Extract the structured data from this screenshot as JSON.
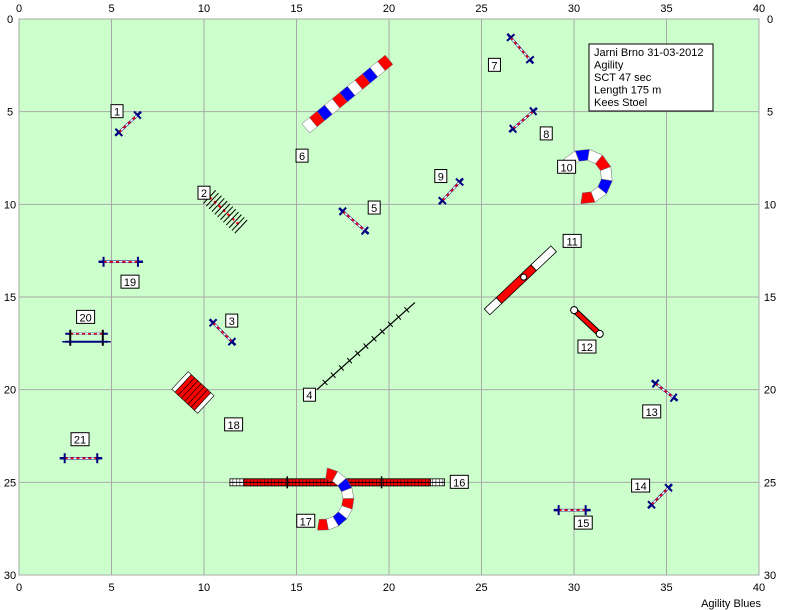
{
  "course": {
    "field_color": "#ccffcc",
    "grid_color": "#a9a9a9",
    "x_range": [
      0,
      40
    ],
    "y_range": [
      0,
      30
    ],
    "x_ticks": [
      "0",
      "5",
      "10",
      "15",
      "20",
      "25",
      "30",
      "35",
      "40"
    ],
    "y_ticks": [
      "0",
      "5",
      "10",
      "15",
      "20",
      "25",
      "30"
    ],
    "info_lines": [
      "Jarni Brno 31-03-2012",
      "Agility",
      "SCT 47 sec",
      "Length 175 m",
      "Kees Stoel"
    ],
    "brand": "Agility Blues",
    "colors": {
      "red": "#ff0000",
      "blue": "#0000ff",
      "dark_blue": "#000080",
      "white": "#ffffff"
    }
  },
  "obstacles": [
    {
      "num": "1",
      "type": "jump",
      "ax": 5.2,
      "ay": 6.3,
      "bx": 6.6,
      "by": 5.0,
      "lx": 5.3,
      "ly": 5.0
    },
    {
      "num": "2",
      "type": "weave",
      "ax": 10.3,
      "ay": 9.6,
      "bx": 12.0,
      "by": 11.2,
      "lx": 10.0,
      "ly": 9.4
    },
    {
      "num": "3",
      "type": "jump",
      "ax": 10.3,
      "ay": 16.2,
      "bx": 11.7,
      "by": 17.6,
      "lx": 11.5,
      "ly": 16.3
    },
    {
      "num": "4",
      "type": "dogwalk",
      "ax": 16.1,
      "ay": 20.0,
      "bx": 21.4,
      "by": 15.3,
      "lx": 15.7,
      "ly": 20.3
    },
    {
      "num": "5",
      "type": "jump",
      "ax": 17.3,
      "ay": 10.2,
      "bx": 18.9,
      "by": 11.6,
      "lx": 19.2,
      "ly": 10.2
    },
    {
      "num": "6",
      "type": "tunnel",
      "ax": 15.5,
      "ay": 5.9,
      "bx": 20.0,
      "by": 2.2,
      "lx": 15.3,
      "ly": 7.4
    },
    {
      "num": "7",
      "type": "jump",
      "ax": 26.4,
      "ay": 0.8,
      "bx": 27.8,
      "by": 2.4,
      "lx": 25.7,
      "ly": 2.5
    },
    {
      "num": "8",
      "type": "jump",
      "ax": 26.5,
      "ay": 6.1,
      "bx": 28.0,
      "by": 4.8,
      "lx": 28.5,
      "ly": 6.2
    },
    {
      "num": "9",
      "type": "jump",
      "ax": 22.7,
      "ay": 10.0,
      "bx": 24.0,
      "by": 8.6,
      "lx": 22.8,
      "ly": 8.5
    },
    {
      "num": "10",
      "type": "tunnel_curve",
      "lx": 29.6,
      "ly": 8.0
    },
    {
      "num": "11",
      "type": "seesaw",
      "ax": 25.3,
      "ay": 15.8,
      "bx": 28.9,
      "by": 12.4,
      "lx": 29.9,
      "ly": 12.0
    },
    {
      "num": "12",
      "type": "tire",
      "ax": 29.9,
      "ay": 15.6,
      "bx": 31.5,
      "by": 17.1,
      "lx": 30.7,
      "ly": 17.7
    },
    {
      "num": "13",
      "type": "jump",
      "ax": 34.2,
      "ay": 19.5,
      "bx": 35.6,
      "by": 20.6,
      "lx": 34.2,
      "ly": 21.2
    },
    {
      "num": "14",
      "type": "jump",
      "ax": 34.0,
      "ay": 26.4,
      "bx": 35.3,
      "by": 25.1,
      "lx": 33.6,
      "ly": 25.2
    },
    {
      "num": "15",
      "type": "jump",
      "ax": 28.9,
      "ay": 26.5,
      "bx": 30.9,
      "by": 26.5,
      "lx": 30.5,
      "ly": 27.2
    },
    {
      "num": "16",
      "type": "long_bar",
      "ax": 11.4,
      "ay": 25.0,
      "bx": 23.0,
      "by": 25.0,
      "lx": 23.8,
      "ly": 25.0
    },
    {
      "num": "17",
      "type": "tunnel_curve_low",
      "lx": 15.5,
      "ly": 27.1
    },
    {
      "num": "18",
      "type": "chute",
      "ax": 8.7,
      "ay": 19.5,
      "bx": 10.1,
      "by": 20.8,
      "lx": 11.6,
      "ly": 21.9
    },
    {
      "num": "19",
      "type": "jump",
      "ax": 4.3,
      "ay": 13.1,
      "bx": 6.7,
      "by": 13.1,
      "lx": 6.0,
      "ly": 14.2
    },
    {
      "num": "20",
      "type": "oxer",
      "ax": 2.5,
      "ay": 17.2,
      "bx": 4.8,
      "by": 17.2,
      "lx": 3.6,
      "ly": 16.1
    },
    {
      "num": "21",
      "type": "jump",
      "ax": 2.2,
      "ay": 23.7,
      "bx": 4.5,
      "by": 23.7,
      "lx": 3.3,
      "ly": 22.7
    }
  ]
}
